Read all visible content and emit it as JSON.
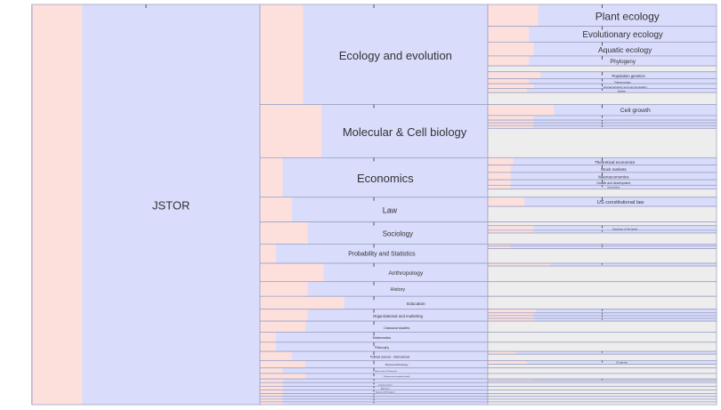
{
  "colors": {
    "background": "#ffffff",
    "pink": "#fde0dc",
    "blue": "#d9dcfb",
    "gray": "#ededed",
    "border": "#9ea3c4",
    "text": "#333333"
  },
  "root": {
    "label": "JSTOR",
    "pink_fraction": 0.22
  },
  "disciplines": [
    {
      "label": "Ecology and evolution",
      "weight": 109,
      "pink": 0.19,
      "topics": [
        {
          "label": "Plant ecology",
          "weight": 22,
          "pink": 0.22
        },
        {
          "label": "Evolutionary ecology",
          "weight": 16,
          "pink": 0.18
        },
        {
          "label": "Aquatic ecology",
          "weight": 14,
          "pink": 0.2
        },
        {
          "label": "Phylogeny",
          "weight": 10,
          "pink": 0.18
        },
        {
          "label": "",
          "weight": 6,
          "pink": 0.0,
          "gray": true
        },
        {
          "label": "Population genetics",
          "weight": 7,
          "pink": 0.23
        },
        {
          "label": "Paleoecology",
          "weight": 5,
          "pink": 0.18
        },
        {
          "label": "Animal behavior and communication",
          "weight": 5,
          "pink": 0.2
        },
        {
          "label": "Nutrition",
          "weight": 4,
          "pink": 0.17
        },
        {
          "label": "",
          "weight": 12,
          "pink": 0.0,
          "gray": true
        }
      ]
    },
    {
      "label": "Molecular & Cell biology",
      "weight": 58,
      "pink": 0.27,
      "topics": [
        {
          "label": "Cell growth",
          "weight": 12,
          "pink": 0.29
        },
        {
          "label": "",
          "weight": 5,
          "pink": 0.2
        },
        {
          "label": "",
          "weight": 3,
          "pink": 0.2
        },
        {
          "label": "",
          "weight": 3,
          "pink": 0.2
        },
        {
          "label": "",
          "weight": 3,
          "pink": 0.2
        },
        {
          "label": "",
          "weight": 32,
          "pink": 0.0,
          "gray": true
        }
      ]
    },
    {
      "label": "Economics",
      "weight": 43,
      "pink": 0.1,
      "topics": [
        {
          "label": "Theoretical economics",
          "weight": 8,
          "pink": 0.11
        },
        {
          "label": "Stock markets",
          "weight": 8,
          "pink": 0.1
        },
        {
          "label": "Macroeconomics",
          "weight": 8,
          "pink": 0.1
        },
        {
          "label": "Growth and development",
          "weight": 6,
          "pink": 0.1
        },
        {
          "label": "Econometrics",
          "weight": 4,
          "pink": 0.1
        },
        {
          "label": "",
          "weight": 9,
          "pink": 0.0,
          "gray": true
        }
      ]
    },
    {
      "label": "Law",
      "weight": 27,
      "pink": 0.14,
      "topics": [
        {
          "label": "US constitutional law",
          "weight": 10,
          "pink": 0.16
        },
        {
          "label": "",
          "weight": 17,
          "pink": 0.0,
          "gray": true
        }
      ]
    },
    {
      "label": "Sociology",
      "weight": 24,
      "pink": 0.21,
      "topics": [
        {
          "label": "",
          "weight": 4,
          "pink": 0.0,
          "gray": true
        },
        {
          "label": "Sociology of the family",
          "weight": 5,
          "pink": 0.2
        },
        {
          "label": "",
          "weight": 3,
          "pink": 0.2
        },
        {
          "label": "",
          "weight": 12,
          "pink": 0.0,
          "gray": true
        }
      ]
    },
    {
      "label": "Probability and Statistics",
      "weight": 21,
      "pink": 0.07,
      "topics": [
        {
          "label": "",
          "weight": 2,
          "pink": 0.1
        },
        {
          "label": "",
          "weight": 3,
          "pink": 0.1
        },
        {
          "label": "",
          "weight": 16,
          "pink": 0.0,
          "gray": true
        }
      ]
    },
    {
      "label": "Anthropology",
      "weight": 20,
      "pink": 0.28,
      "topics": [
        {
          "label": "",
          "weight": 3,
          "pink": 0.27
        },
        {
          "label": "",
          "weight": 17,
          "pink": 0.0,
          "gray": true
        }
      ]
    },
    {
      "label": "History",
      "weight": 16,
      "pink": 0.21,
      "topics": [
        {
          "label": "",
          "weight": 16,
          "pink": 0.0,
          "gray": true
        }
      ]
    },
    {
      "label": "Education",
      "weight": 14,
      "pink": 0.37,
      "topics": [
        {
          "label": "",
          "weight": 14,
          "pink": 0.0,
          "gray": true
        }
      ]
    },
    {
      "label": "Organizational and marketing",
      "weight": 13,
      "pink": 0.21,
      "topics": [
        {
          "label": "",
          "weight": 4,
          "pink": 0.21
        },
        {
          "label": "",
          "weight": 3,
          "pink": 0.2
        },
        {
          "label": "",
          "weight": 3,
          "pink": 0.2
        },
        {
          "label": "",
          "weight": 3,
          "pink": 0.2
        }
      ]
    },
    {
      "label": "Classical studies",
      "weight": 12,
      "pink": 0.2,
      "topics": [
        {
          "label": "",
          "weight": 12,
          "pink": 0.0,
          "gray": true
        }
      ]
    },
    {
      "label": "Mathematics",
      "weight": 11,
      "pink": 0.07,
      "topics": [
        {
          "label": "",
          "weight": 11,
          "pink": 0.0,
          "gray": true
        }
      ]
    },
    {
      "label": "Philosophy",
      "weight": 10,
      "pink": 0.07,
      "topics": [
        {
          "label": "",
          "weight": 10,
          "pink": 0.0,
          "gray": true
        }
      ]
    },
    {
      "label": "Political science - international",
      "weight": 10,
      "pink": 0.14,
      "topics": [
        {
          "label": "",
          "weight": 3,
          "pink": 0.12
        },
        {
          "label": "",
          "weight": 7,
          "pink": 0.0,
          "gray": true
        }
      ]
    },
    {
      "label": "Physical anthropology",
      "weight": 8,
      "pink": 0.2,
      "topics": [
        {
          "label": "US state law",
          "weight": 4,
          "pink": 0.17
        },
        {
          "label": "",
          "weight": 4,
          "pink": 0.0,
          "gray": true
        }
      ]
    },
    {
      "label": "Political science-US domestic",
      "weight": 6,
      "pink": 0.1,
      "topics": [
        {
          "label": "",
          "weight": 6,
          "pink": 0.0,
          "gray": true
        }
      ]
    },
    {
      "label": "Pollution and occupational health",
      "weight": 6,
      "pink": 0.2,
      "topics": [
        {
          "label": "",
          "weight": 6,
          "pink": 0.0,
          "gray": true
        }
      ]
    },
    {
      "label": "",
      "weight": 4,
      "pink": 0.1,
      "topics": [
        {
          "label": "",
          "weight": 2,
          "pink": 0.2
        },
        {
          "label": "",
          "weight": 2,
          "pink": 0.0,
          "gray": true
        }
      ]
    },
    {
      "label": "Computer science",
      "weight": 4,
      "pink": 0.1,
      "topics": [
        {
          "label": "",
          "weight": 4,
          "pink": 0.0,
          "gray": true
        }
      ]
    },
    {
      "label": "Agriculture",
      "weight": 4,
      "pink": 0.1,
      "topics": [
        {
          "label": "",
          "weight": 4,
          "pink": 0.0,
          "gray": true
        }
      ]
    },
    {
      "label": "Spanish and Portuguese",
      "weight": 4,
      "pink": 0.1,
      "topics": [
        {
          "label": "",
          "weight": 4,
          "pink": 0.0,
          "gray": true
        }
      ]
    },
    {
      "label": "",
      "weight": 3,
      "pink": 0.1,
      "topics": [
        {
          "label": "",
          "weight": 3,
          "pink": 0.0,
          "gray": true
        }
      ]
    },
    {
      "label": "",
      "weight": 3,
      "pink": 0.1,
      "topics": [
        {
          "label": "",
          "weight": 3,
          "pink": 0.0,
          "gray": true
        }
      ]
    },
    {
      "label": "",
      "weight": 3,
      "pink": 0.1,
      "topics": [
        {
          "label": "",
          "weight": 3,
          "pink": 0.0,
          "gray": true
        }
      ]
    },
    {
      "label": "",
      "weight": 3,
      "pink": 0.1,
      "topics": [
        {
          "label": "",
          "weight": 3,
          "pink": 0.0,
          "gray": true
        }
      ]
    }
  ]
}
